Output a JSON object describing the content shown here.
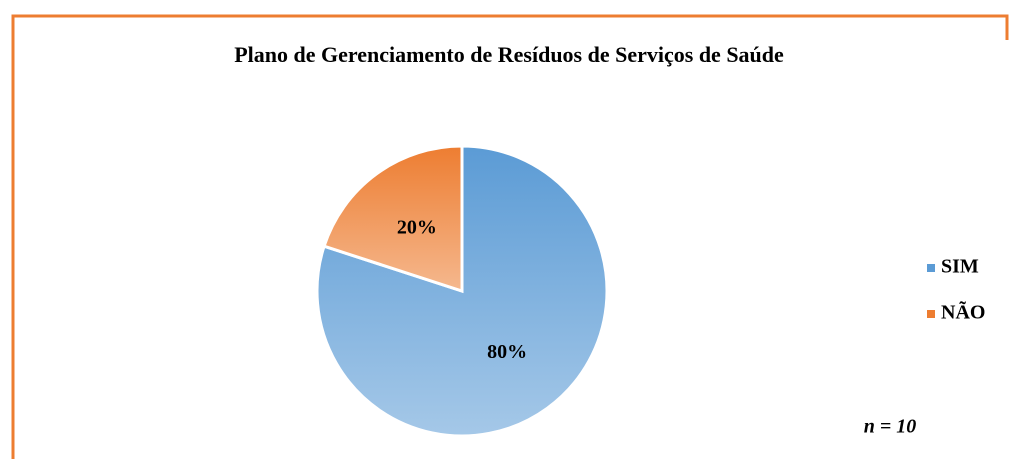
{
  "chart_data": {
    "type": "pie",
    "title": "Plano de Gerenciamento de Resíduos de Serviços de Saúde",
    "categories": [
      "SIM",
      "NÃO"
    ],
    "values": [
      80,
      20
    ],
    "value_labels": [
      "80%",
      "20%"
    ],
    "colors": [
      "#5b9bd5",
      "#ed7d31"
    ],
    "legend": "right",
    "annotation": "n = 10"
  }
}
